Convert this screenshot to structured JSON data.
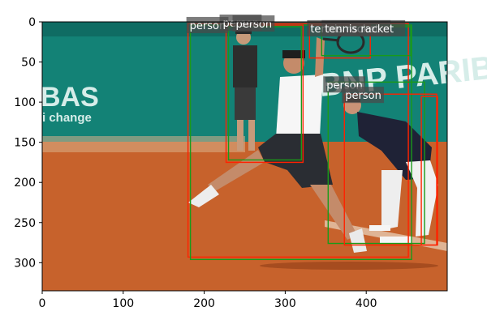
{
  "figure": {
    "x_ticks": [
      "0",
      "100",
      "200",
      "300",
      "400"
    ],
    "y_ticks": [
      "0",
      "50",
      "100",
      "150",
      "200",
      "250",
      "300"
    ],
    "xlim": [
      0,
      500
    ],
    "ylim": [
      335,
      0
    ],
    "grid": false
  },
  "photo": {
    "banner_texts": [
      "BAS",
      "i change",
      "BNP PARIBAS"
    ],
    "colors": {
      "court": "#c7622c",
      "wall": "#138276",
      "shirt": "#f6f6f6"
    }
  },
  "annotations": {
    "colors": {
      "red": "#ff2200",
      "green": "#1a9a1a",
      "label_bg": "#4a4a4a"
    },
    "boxes": [
      {
        "label": "person",
        "color": "red",
        "x0": 180,
        "y0": 2,
        "x1": 452,
        "y1": 293
      },
      {
        "label": "person",
        "color": "green",
        "x0": 183,
        "y0": 4,
        "x1": 456,
        "y1": 296
      },
      {
        "label": "person",
        "color": "red",
        "x0": 227,
        "y0": 4,
        "x1": 322,
        "y1": 175
      },
      {
        "label": "person",
        "color": "green",
        "x0": 230,
        "y0": 6,
        "x1": 320,
        "y1": 172
      },
      {
        "label": "tennis racket",
        "color": "red",
        "x0": 330,
        "y0": 4,
        "x1": 405,
        "y1": 45
      },
      {
        "label": "tennis racket",
        "color": "green",
        "x0": 345,
        "y0": 6,
        "x1": 455,
        "y1": 42
      },
      {
        "label": "person",
        "color": "green",
        "x0": 353,
        "y0": 75,
        "x1": 472,
        "y1": 276
      },
      {
        "label": "person",
        "color": "red",
        "x0": 373,
        "y0": 90,
        "x1": 487,
        "y1": 278
      },
      {
        "label": "person",
        "color": "red",
        "x0": 468,
        "y0": 93,
        "x1": 488,
        "y1": 278
      }
    ],
    "labels": [
      {
        "text": "person",
        "x": 181,
        "y": 8
      },
      {
        "text": "person",
        "x": 222,
        "y": 5
      },
      {
        "text": "person",
        "x": 238,
        "y": 6
      },
      {
        "text": "tennis racket",
        "x": 330,
        "y": 12
      },
      {
        "text": "tennis racket",
        "x": 348,
        "y": 12
      },
      {
        "text": "person",
        "x": 350,
        "y": 82
      },
      {
        "text": "person",
        "x": 373,
        "y": 95
      }
    ]
  }
}
